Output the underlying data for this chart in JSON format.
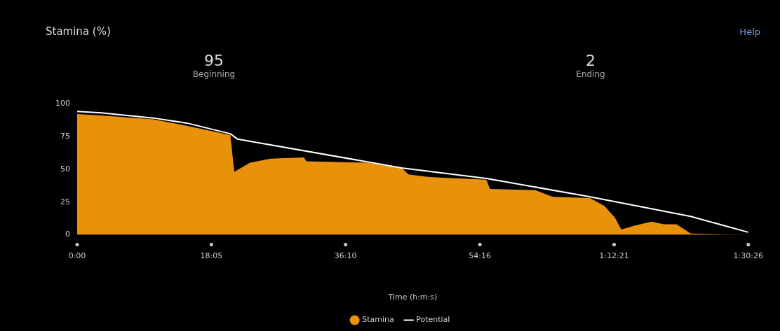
{
  "chart_data": {
    "type": "area",
    "title": "Stamina (%)",
    "xlabel": "Time (h:m:s)",
    "annotations": [
      "95",
      "Beginning",
      "2",
      "Ending",
      "Help"
    ],
    "xlim": [
      0,
      90.433
    ],
    "xticks": [
      {
        "value": 0,
        "label": "0:00"
      },
      {
        "value": 18.083,
        "label": "18:05"
      },
      {
        "value": 36.167,
        "label": "36:10"
      },
      {
        "value": 54.267,
        "label": "54:16"
      },
      {
        "value": 72.35,
        "label": "1:12:21"
      },
      {
        "value": 90.433,
        "label": "1:30:26"
      }
    ],
    "ylim": [
      0,
      100
    ],
    "yticks": [
      0,
      25,
      50,
      75,
      100
    ],
    "grid": false,
    "legend": "bottom",
    "series": [
      {
        "name": "Stamina",
        "color": "#e8920c",
        "x": [
          0,
          3.24,
          10.26,
          14.88,
          20.64,
          21.18,
          23.28,
          26.04,
          30.54,
          30.9,
          39.06,
          43.74,
          44.64,
          47.46,
          55.14,
          55.62,
          61.74,
          64.08,
          69.12,
          71.04,
          72.48,
          73.32,
          75.06,
          77.4,
          79.08,
          80.76,
          82.68,
          90.43
        ],
        "values": [
          92,
          91,
          88,
          83,
          76,
          48,
          55,
          58,
          59,
          56,
          55,
          51,
          46,
          44,
          42,
          35,
          34,
          29,
          28,
          22,
          13,
          4,
          7,
          10,
          8,
          8,
          1,
          0
        ]
      },
      {
        "name": "Potential",
        "type": "line",
        "color": "#ffffff",
        "x": [
          0,
          3.24,
          10.26,
          14.88,
          20.64,
          21.6,
          43.74,
          55.14,
          69.12,
          82.68,
          90.43
        ],
        "values": [
          94,
          93,
          89,
          85,
          77,
          73,
          51,
          43,
          29,
          14,
          2
        ]
      }
    ]
  }
}
